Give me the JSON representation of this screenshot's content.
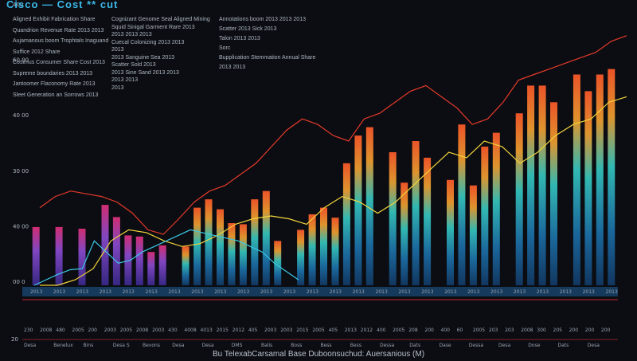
{
  "header": {
    "title": "Cisco — Cost ** cut",
    "notes_col1": [
      "Aligned Exhibit Fabrication Share",
      "Quandrion Revenue Rate 2013 2013",
      "Aujamanous boom Trophtals Inaguand",
      "Suffice 2012 Share",
      "Cosimus Consumer Share Cost 2013",
      "Supreme boundaries 2013 2013",
      "Jantoomer Flaconomy Rate 2013",
      "Sleet Generation an Sorrows 2013"
    ],
    "notes_col2": [
      "Cognizant Genome Seal Aligned Mining",
      "Squid Sinigal Garment Rare 2013",
      "2013 2013 2013",
      "Cuecal Colonizing 2013 2013",
      "2013",
      "2013 Sanguine Sea 2013",
      "Scatter Sold 2013",
      "2013 Sine Sand 2013 2013",
      "2013 2013",
      "2013"
    ],
    "notes_col3": [
      "Annotations boom 2013 2013 2013",
      "Scatter 2013 Sick 2013",
      "Talon 2013 2013",
      "Sorc",
      "Bupplication Stemmation Annual Share",
      "2013 2013"
    ]
  },
  "chart_data": {
    "type": "bar",
    "title": "",
    "caption": "Bu TelexabCarsamal Base Duboonsuchud: Auersanious (M)",
    "y_ticks": [
      "00 0",
      "40 00",
      "30 00",
      "40 00",
      "60 00",
      "400"
    ],
    "ylim": [
      0,
      500
    ],
    "grid": false,
    "categories": [
      "2013",
      "2013",
      "2013",
      "2013",
      "2013",
      "2013",
      "2013",
      "2013",
      "2013",
      "2013",
      "2013",
      "2013",
      "2013",
      "2013",
      "2013",
      "2013",
      "2013",
      "2013",
      "2013",
      "2013",
      "2013",
      "2013",
      "2013",
      "2013",
      "2013",
      "2013",
      "2013",
      "2013",
      "2013",
      "2013",
      "2013",
      "2013",
      "2013",
      "2013",
      "2013",
      "2013",
      "2013",
      "2013",
      "2013",
      "2013",
      "2013",
      "2013",
      "2013",
      "2013",
      "2013",
      "2013",
      "2013",
      "2013",
      "2013",
      "2013",
      "2013"
    ],
    "bars": [
      105,
      0,
      105,
      0,
      102,
      0,
      145,
      123,
      90,
      88,
      60,
      72,
      0,
      70,
      140,
      155,
      137,
      112,
      110,
      155,
      170,
      80,
      0,
      100,
      128,
      140,
      122,
      220,
      270,
      285,
      0,
      240,
      185,
      260,
      230,
      0,
      190,
      290,
      180,
      250,
      275,
      0,
      310,
      360,
      360,
      330,
      0,
      380,
      350,
      380,
      390
    ],
    "line_series": [
      {
        "name": "",
        "color": "#e63a2a",
        "values": [
          140,
          160,
          170,
          165,
          160,
          150,
          130,
          100,
          92,
          120,
          150,
          170,
          180,
          200,
          220,
          250,
          280,
          300,
          290,
          270,
          260,
          300,
          310,
          330,
          350,
          360,
          340,
          320,
          290,
          300,
          330,
          370,
          380,
          390,
          400,
          410,
          420,
          440,
          450
        ]
      },
      {
        "name": "",
        "color": "#f2d33a",
        "values": [
          0,
          0,
          10,
          30,
          80,
          100,
          95,
          80,
          70,
          75,
          90,
          110,
          120,
          125,
          120,
          110,
          140,
          160,
          150,
          130,
          150,
          180,
          210,
          240,
          230,
          260,
          250,
          220,
          240,
          270,
          290,
          300,
          330,
          340
        ]
      },
      {
        "name": "",
        "color": "#3cc9e6",
        "values": [
          0,
          10,
          20,
          28,
          30,
          80,
          60,
          40,
          45,
          60,
          70,
          80,
          90,
          100,
          95,
          90,
          85,
          80,
          70,
          60,
          40,
          25,
          10
        ]
      }
    ],
    "row_values_1": [
      "230",
      "2008",
      "480",
      "2005",
      "200",
      "2003",
      "2005",
      "2008",
      "2003",
      "430",
      "4008",
      "4013",
      "2015",
      "2012",
      "405",
      "2003",
      "2003",
      "2015",
      "2005",
      "405",
      "2013",
      "2012",
      "400",
      "2005",
      "208",
      "200",
      "400",
      "60",
      "2005",
      "203",
      "203",
      "2008",
      "300",
      "205",
      "200",
      "200",
      "200"
    ],
    "row_values_2": [
      "Desa",
      "Benelux",
      "Bins",
      "Desa S",
      "Bevons",
      "Desa",
      "Desa",
      "DMS",
      "Balis",
      "Boss",
      "Bess",
      "Bess",
      "Dessa",
      "Dats",
      "Dase",
      "Dessa",
      "Desa",
      "Dose",
      "Dats",
      "Desa"
    ],
    "left_marker": "20"
  }
}
